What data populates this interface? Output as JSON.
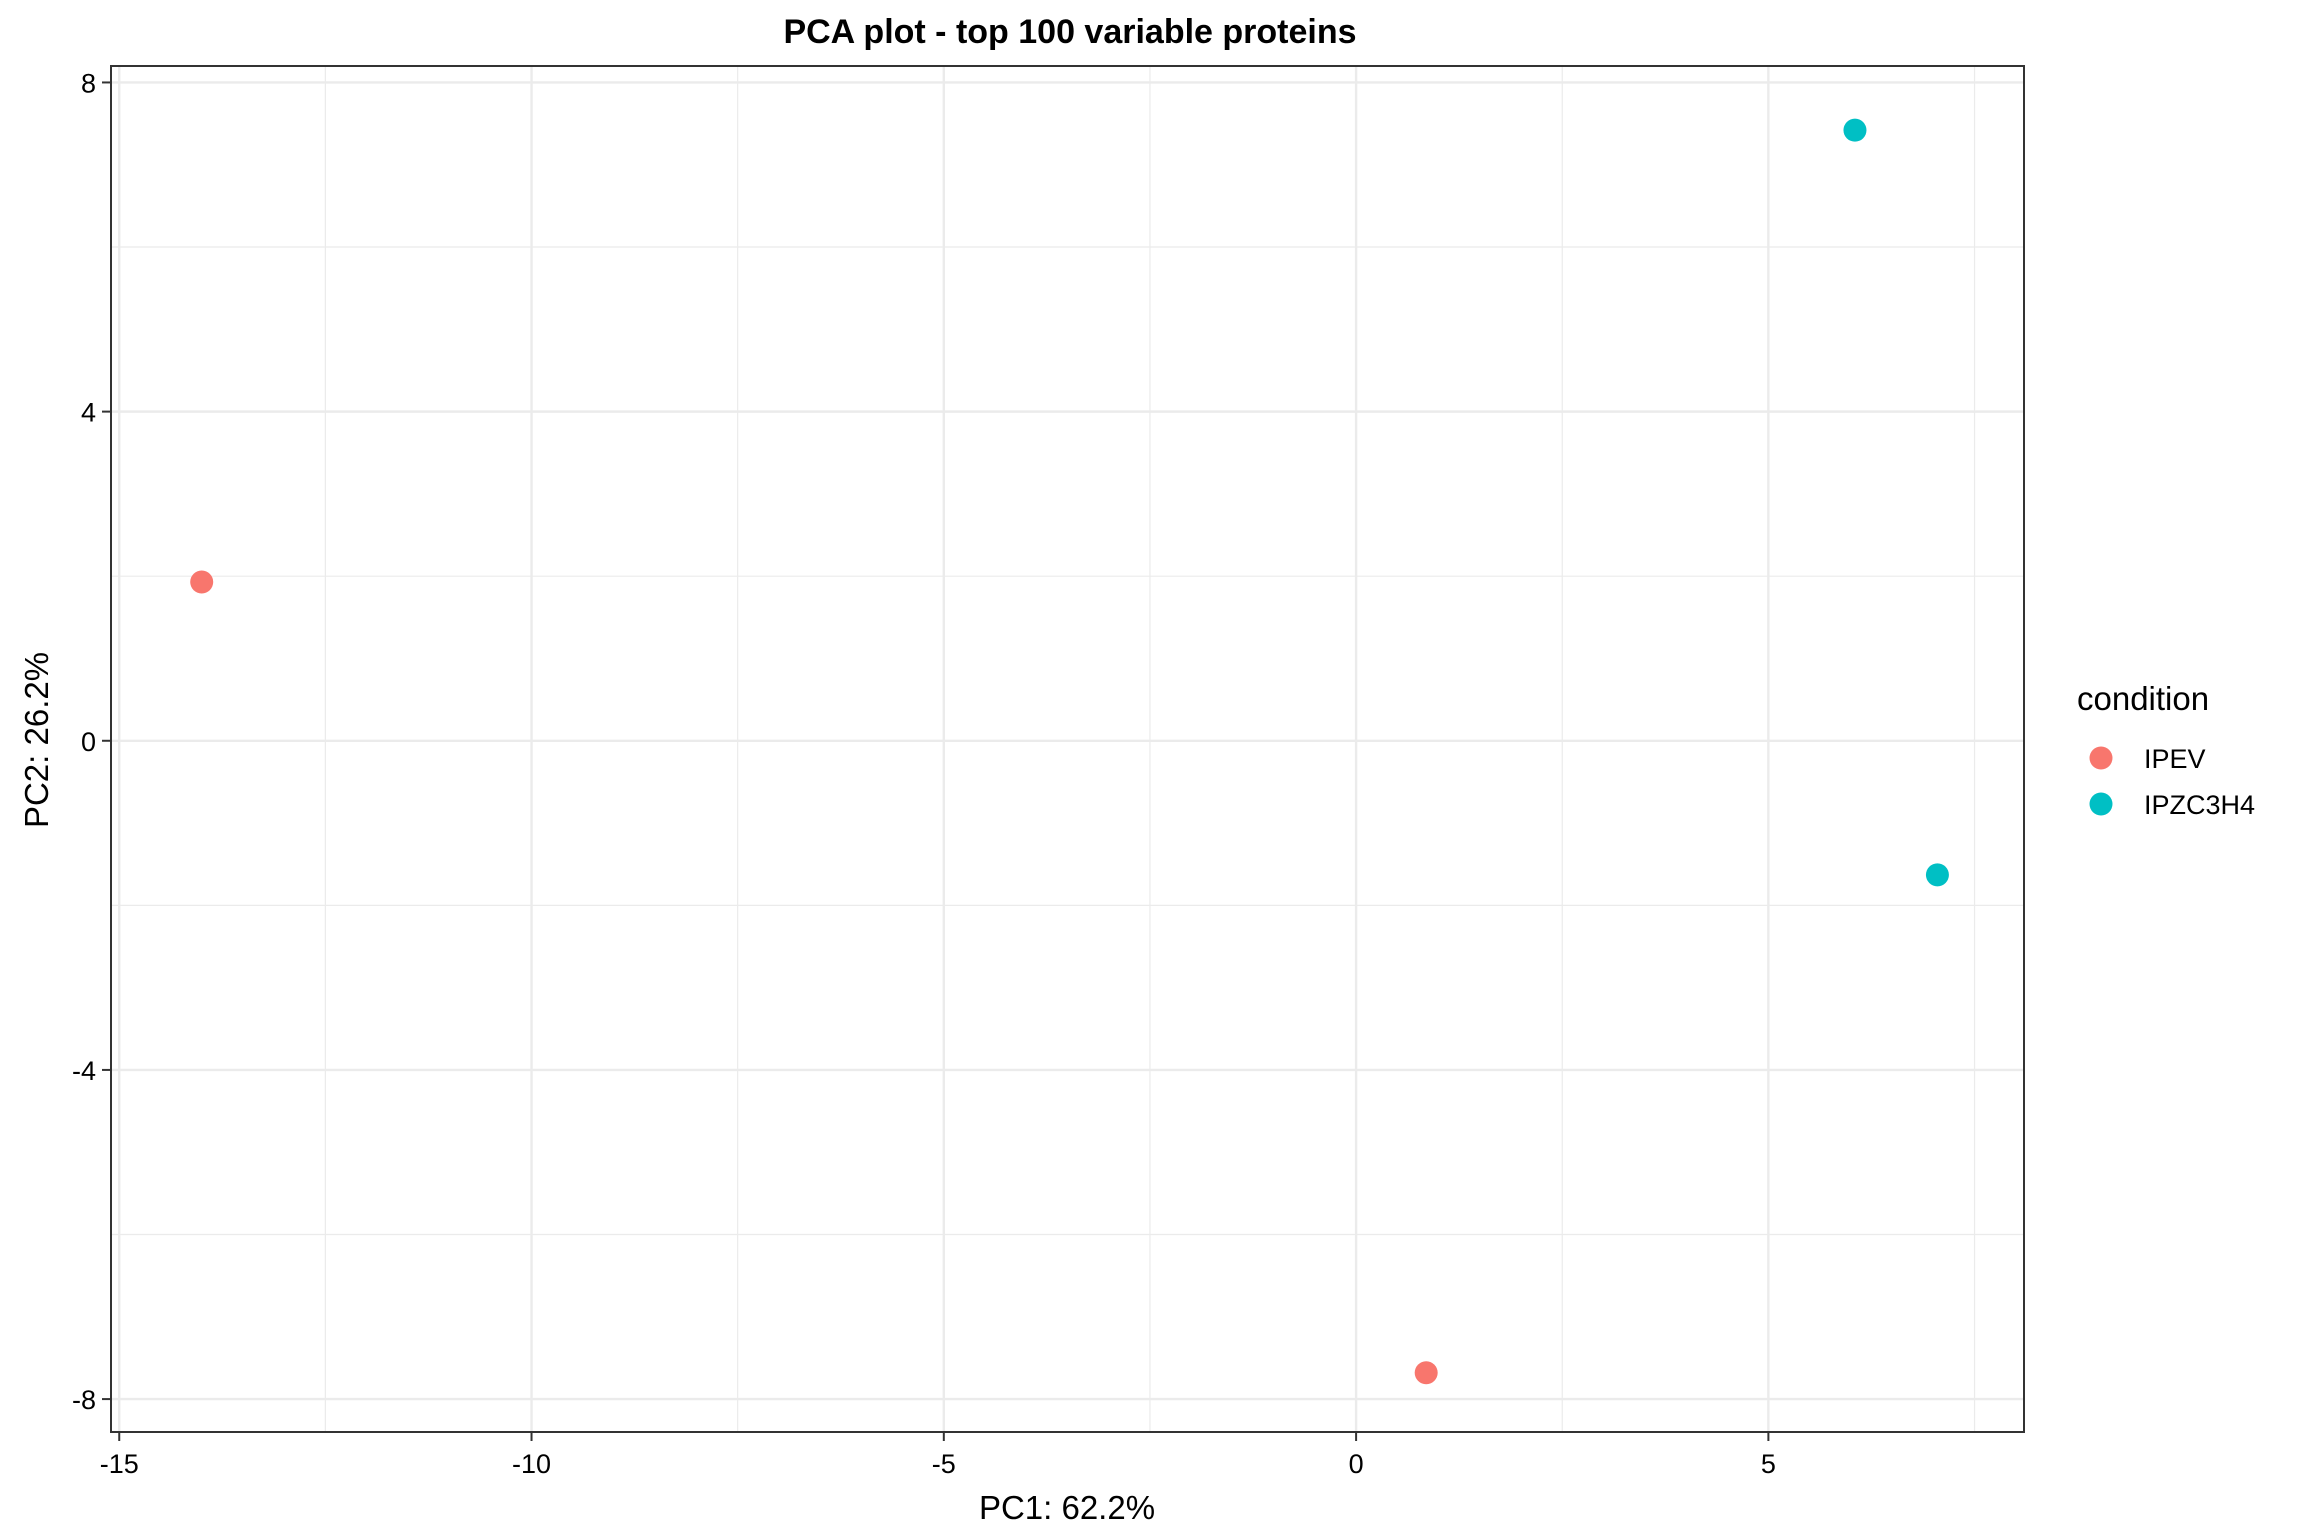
{
  "chart_data": {
    "type": "scatter",
    "title": "PCA plot - top 100 variable proteins",
    "xlabel": "PC1: 62.2%",
    "ylabel": "PC2: 26.2%",
    "xlim": [
      -15.1,
      8.1
    ],
    "ylim": [
      -8.4,
      8.2
    ],
    "x_ticks": [
      -15,
      -10,
      -5,
      0,
      5
    ],
    "x_tick_labels": [
      "-15",
      "-10",
      "-5",
      "0",
      "5"
    ],
    "y_ticks": [
      -8,
      -4,
      0,
      4,
      8
    ],
    "y_tick_labels": [
      "-8",
      "-4",
      "0",
      "4",
      "8"
    ],
    "grid": true,
    "legend": {
      "title": "condition",
      "placement": "right"
    },
    "series": [
      {
        "name": "IPEV",
        "color": "#F8766D",
        "points": [
          {
            "x": -14.0,
            "y": 1.93
          },
          {
            "x": 0.85,
            "y": -7.68
          }
        ]
      },
      {
        "name": "IPZC3H4",
        "color": "#00BFC4",
        "points": [
          {
            "x": 6.05,
            "y": 7.42
          },
          {
            "x": 7.05,
            "y": -1.63
          }
        ]
      }
    ]
  }
}
